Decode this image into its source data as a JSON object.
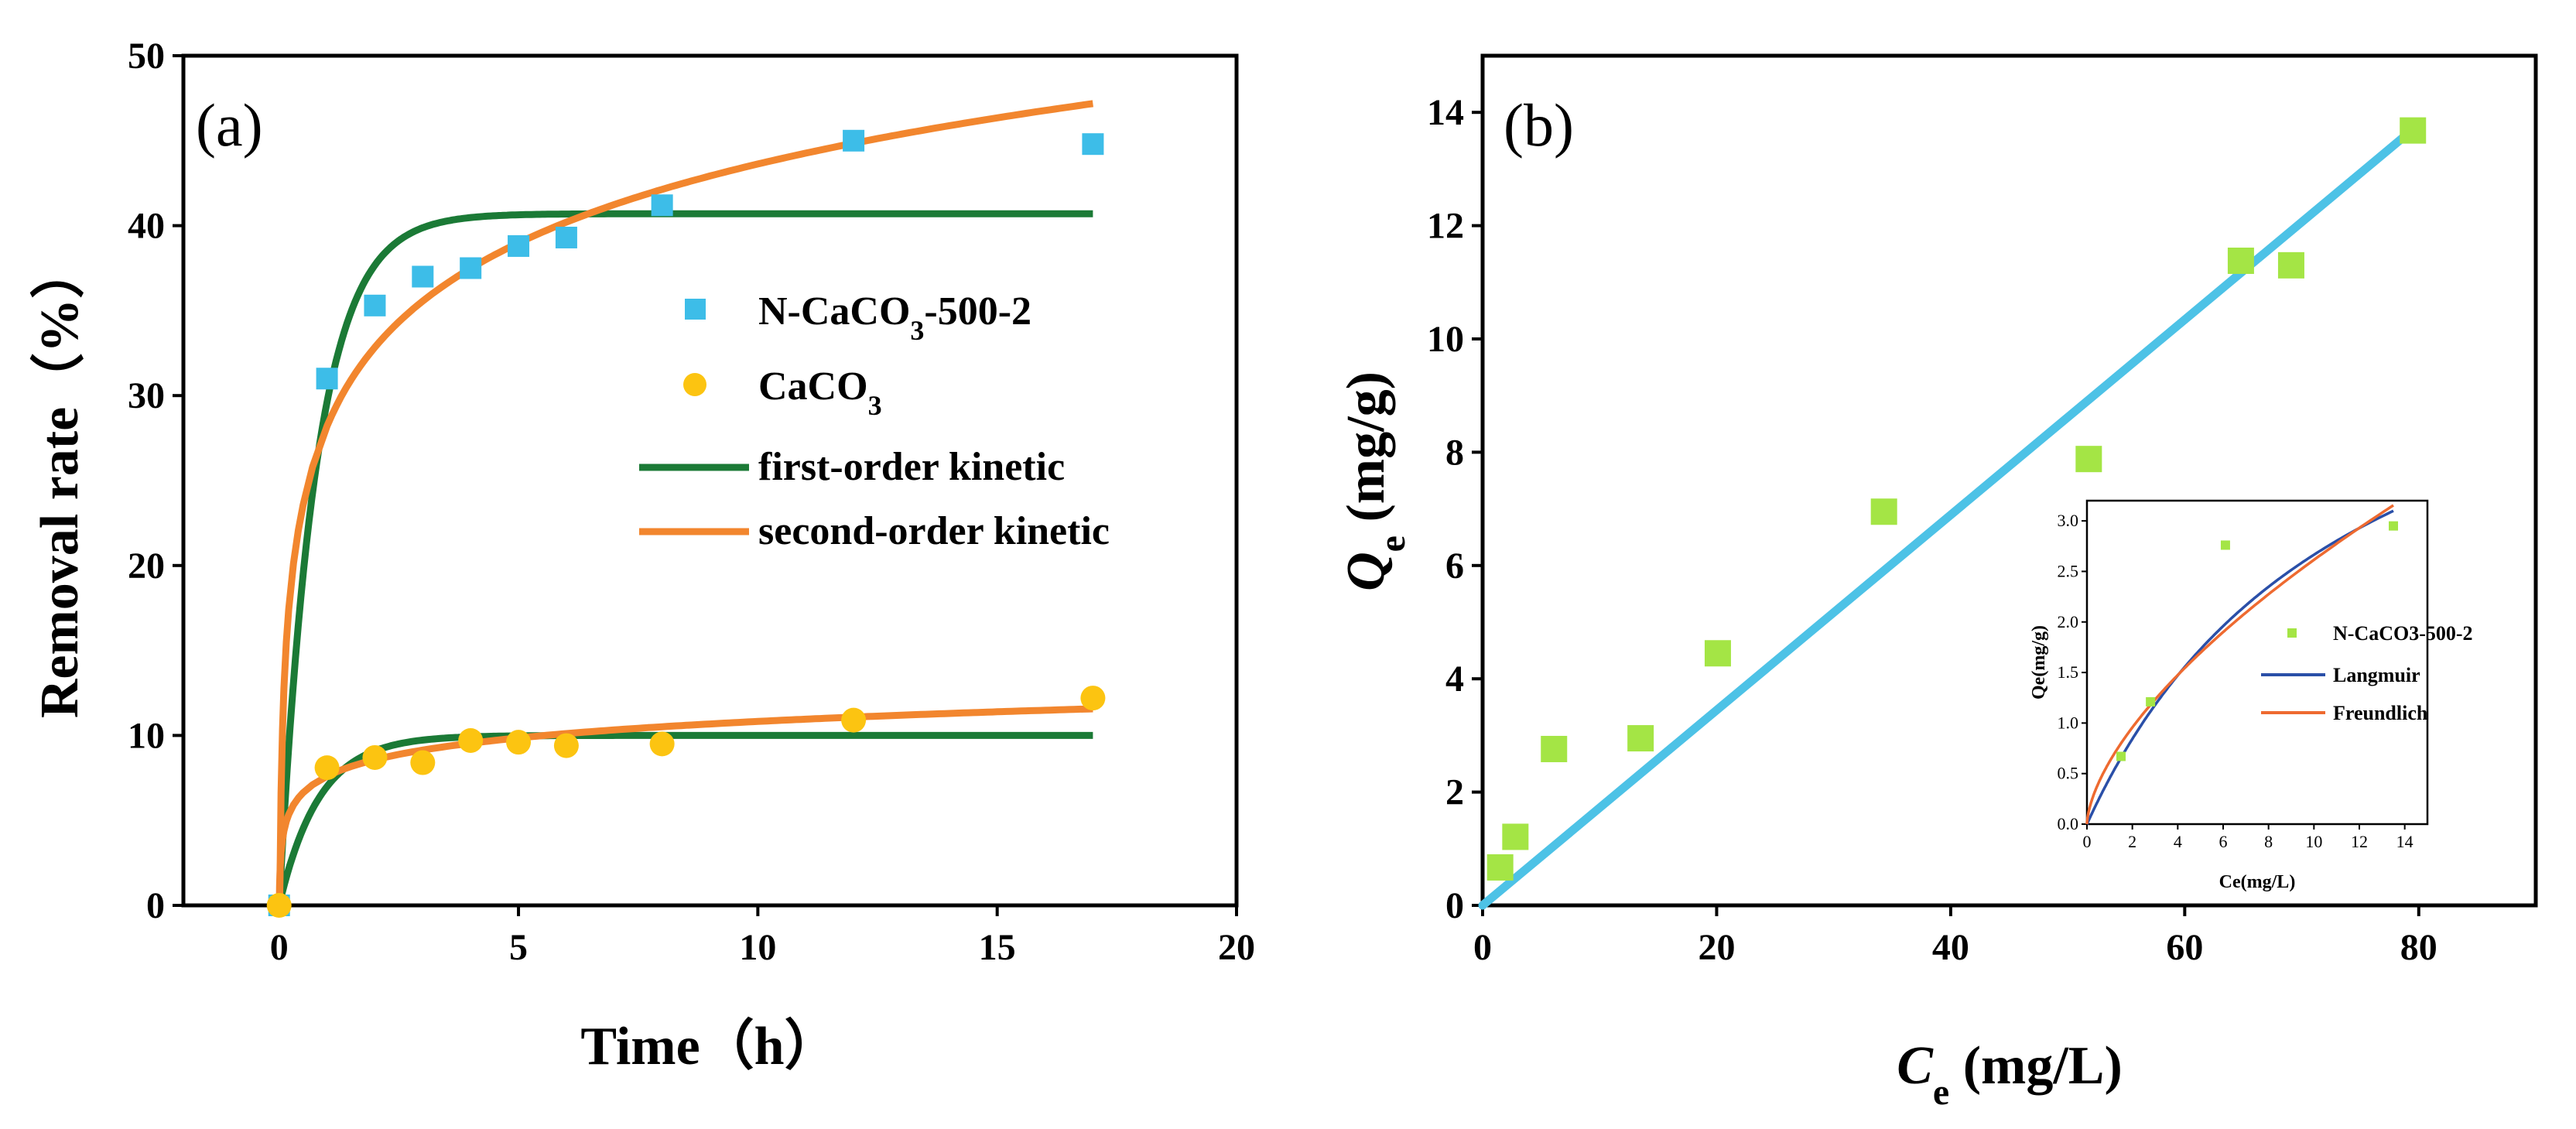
{
  "colors": {
    "n_caco3": "#3dbde8",
    "caco3": "#fcc411",
    "first_order": "#1b7a36",
    "second_order": "#f2862e",
    "points_b": "#a4e545",
    "fit_b": "#4dc2e6",
    "langmuir": "#2a4fa8",
    "freundlich": "#ee6a30"
  },
  "chart_data": [
    {
      "id": "a",
      "panel_label": "(a)",
      "type": "scatter",
      "xlabel": "Time（h）",
      "ylabel": "Removal rate（%）",
      "xlim": [
        -2,
        20
      ],
      "ylim": [
        0,
        50
      ],
      "xticks": [
        0,
        5,
        10,
        15,
        20
      ],
      "yticks": [
        0,
        10,
        20,
        30,
        40,
        50
      ],
      "series": [
        {
          "name": "N-CaCO3-500-2",
          "name_base": "N-CaCO",
          "name_sub": "3",
          "name_tail": "-500-2",
          "kind": "square",
          "color": "#3dbde8",
          "x": [
            0,
            1,
            2,
            3,
            4,
            5,
            6,
            8,
            12,
            17
          ],
          "y": [
            0,
            31,
            35.3,
            37,
            37.5,
            38.8,
            39.3,
            41.2,
            45,
            44.8
          ]
        },
        {
          "name": "CaCO3",
          "name_base": "CaCO",
          "name_sub": "3",
          "name_tail": "",
          "kind": "circle",
          "color": "#fcc411",
          "x": [
            0,
            1,
            2,
            3,
            4,
            5,
            6,
            8,
            12,
            17
          ],
          "y": [
            0,
            8.1,
            8.7,
            8.4,
            9.7,
            9.6,
            9.4,
            9.5,
            10.9,
            12.2
          ]
        }
      ],
      "fits": [
        {
          "name": "first-order kinetic",
          "model": "first",
          "color": "#1b7a36",
          "params": [
            {
              "qe": 40.7,
              "k": 1.3
            },
            {
              "qe": 10.0,
              "k": 1.2
            }
          ]
        },
        {
          "name": "second-order kinetic",
          "model": "second",
          "color": "#f2862e",
          "params": [
            {
              "A": 28.2,
              "B": 6.7
            },
            {
              "A": 7.6,
              "B": 1.4
            }
          ]
        }
      ],
      "fit_x_range": [
        0,
        17
      ]
    },
    {
      "id": "b",
      "panel_label": "(b)",
      "type": "scatter",
      "xlabel_main": "C",
      "xlabel_sub": "e",
      "xlabel_tail": " (mg/L)",
      "ylabel_main": "Q",
      "ylabel_sub": "e",
      "ylabel_tail": " (mg/g)",
      "xlim": [
        0,
        90
      ],
      "ylim": [
        0,
        15
      ],
      "xticks": [
        0,
        20,
        40,
        60,
        80
      ],
      "yticks": [
        0,
        2,
        4,
        6,
        8,
        10,
        12,
        14
      ],
      "series": [
        {
          "name": "N-CaCO3-500-2",
          "kind": "square",
          "color": "#a4e545",
          "x": [
            1.5,
            2.8,
            6.1,
            13.5,
            20.1,
            34.3,
            51.8,
            64.8,
            69.1,
            79.5
          ],
          "y": [
            0.67,
            1.21,
            2.76,
            2.95,
            4.45,
            6.95,
            7.88,
            11.38,
            11.3,
            13.68
          ]
        }
      ],
      "fit_line": {
        "name": "linear fit",
        "color": "#4dc2e6",
        "x": [
          0,
          79.5
        ],
        "y": [
          0,
          13.7
        ]
      },
      "inset": {
        "xlabel": "Ce(mg/L)",
        "ylabel": "Qe(mg/g)",
        "xlim": [
          0,
          15
        ],
        "ylim": [
          0,
          3.2
        ],
        "xticks": [
          0,
          2,
          4,
          6,
          8,
          10,
          12,
          14
        ],
        "yticks": [
          "0.0",
          "0.5",
          "1.0",
          "1.5",
          "2.0",
          "2.5",
          "3.0"
        ],
        "legend": [
          "N-CaCO3-500-2",
          "Langmuir",
          "Freundlich"
        ],
        "points": {
          "x": [
            1.5,
            2.8,
            6.1,
            13.5
          ],
          "y": [
            0.67,
            1.21,
            2.76,
            2.95
          ],
          "color": "#a4e545"
        },
        "curves": [
          {
            "name": "Langmuir",
            "model": "langmuir",
            "color": "#2a4fa8",
            "qm": 5.8,
            "KL": 0.085
          },
          {
            "name": "Freundlich",
            "model": "freundlich",
            "color": "#ee6a30",
            "KF": 0.62,
            "n": 1.6
          }
        ],
        "curve_x_range": [
          0,
          13.5
        ]
      }
    }
  ]
}
